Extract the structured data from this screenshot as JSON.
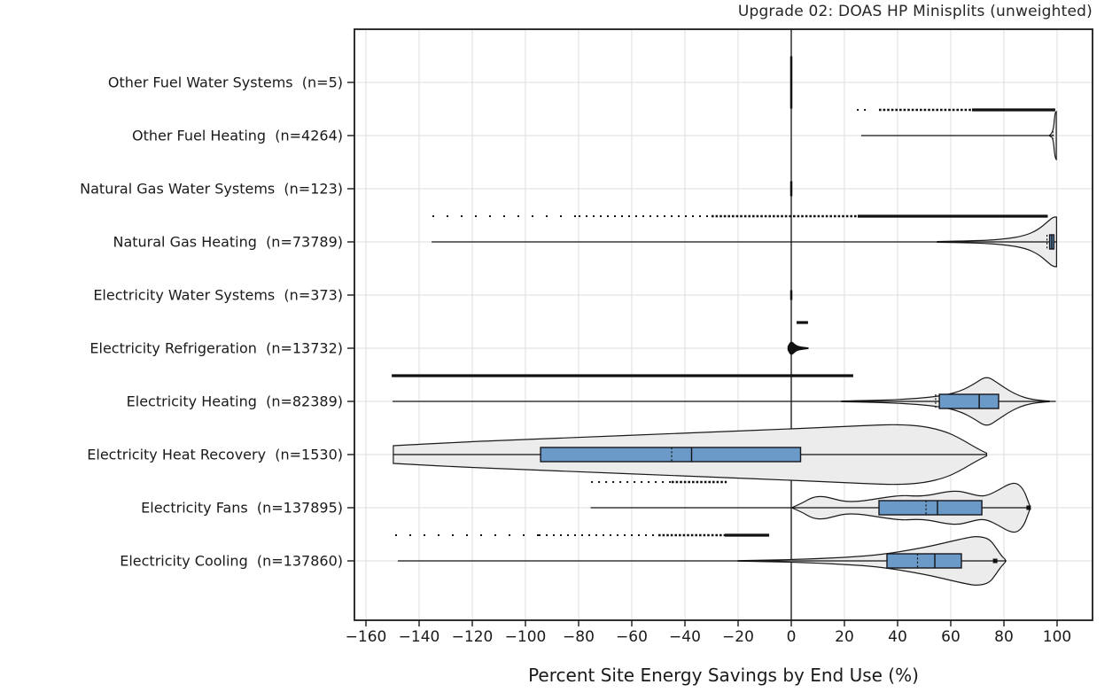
{
  "colors": {
    "box_fill": "#6C9AC8",
    "box_edge": "#16161d",
    "violin_fill": "#ececec",
    "violin_edge": "#1a1a1a",
    "grid": "#dcdcdc",
    "zero_line": "#3c3c3c",
    "axis": "#1a1a1a",
    "ink": "#111111"
  },
  "chart_data": {
    "type": "violin+box (horizontal, with outlier strips)",
    "title": "Upgrade 02: DOAS HP Minisplits (unweighted)",
    "xlabel": "Percent Site Energy Savings by End Use (%)",
    "x_axis": {
      "min": -176,
      "max": 113,
      "ticks": [
        -160,
        -140,
        -120,
        -100,
        -80,
        -60,
        -40,
        -20,
        0,
        20,
        40,
        60,
        80,
        100
      ],
      "zero_reference_line": 0,
      "grid": true
    },
    "legend": "none",
    "categories": [
      "Other Fuel Water Systems  (n=5)",
      "Other Fuel Heating  (n=4264)",
      "Natural Gas Water Systems  (n=123)",
      "Natural Gas Heating  (n=73789)",
      "Electricity Water Systems  (n=373)",
      "Electricity Refrigeration  (n=13732)",
      "Electricity Heating  (n=82389)",
      "Electricity Heat Recovery  (n=1530)",
      "Electricity Fans  (n=137895)",
      "Electricity Cooling  (n=137860)"
    ],
    "rows": [
      {
        "label": "Other Fuel Water Systems  (n=5)",
        "n": 5,
        "zero_bar": 29.5
      },
      {
        "label": "Other Fuel Heating  (n=4264)",
        "n": 4264,
        "rug": [
          [
            24.7,
            28.5,
            "dots"
          ],
          [
            33,
            68,
            "dense"
          ],
          [
            68,
            99.3,
            "solid"
          ]
        ],
        "whisker": [
          26.3,
          98.8
        ],
        "violin": [
          [
            97.2,
            0.5
          ],
          [
            98.5,
            2.5
          ],
          [
            99.2,
            26
          ],
          [
            99.7,
            27
          ]
        ],
        "qdash": 98.4
      },
      {
        "label": "Natural Gas Water Systems  (n=123)",
        "n": 123,
        "zero_bar": 8.5
      },
      {
        "label": "Natural Gas Heating  (n=73789)",
        "n": 73789,
        "rug": [
          [
            -135,
            -80,
            "sparse"
          ],
          [
            -80,
            -30,
            "dots"
          ],
          [
            -30,
            25,
            "dense"
          ],
          [
            25,
            96.5,
            "solid"
          ]
        ],
        "whisker": [
          -135.3,
          99.7
        ],
        "violin": [
          [
            55,
            0.4
          ],
          [
            70,
            1.2
          ],
          [
            80,
            3
          ],
          [
            88,
            7
          ],
          [
            93,
            14
          ],
          [
            96.5,
            23
          ],
          [
            98.5,
            28
          ],
          [
            99.8,
            28
          ]
        ],
        "box": {
          "q1": 97.2,
          "q3": 98.8,
          "median": 98.0,
          "dashed": 96.2
        }
      },
      {
        "label": "Electricity Water Systems  (n=373)",
        "n": 373,
        "zero_bar": 5.5
      },
      {
        "label": "Electricity Refrigeration  (n=13732)",
        "n": 13732,
        "rug": [
          [
            2,
            6.3,
            "solid"
          ]
        ],
        "whisker": [
          -0.8,
          6.5
        ],
        "violin": [
          [
            -1.2,
            2
          ],
          [
            -0.4,
            6.5
          ],
          [
            0.3,
            7
          ],
          [
            1,
            5
          ],
          [
            2,
            2.5
          ],
          [
            4,
            1.2
          ],
          [
            6.3,
            0.4
          ]
        ],
        "violin_dark": true
      },
      {
        "label": "Electricity Heating  (n=82389)",
        "n": 82389,
        "rug": [
          [
            -150.3,
            23.3,
            "solid"
          ]
        ],
        "whisker": [
          -150,
          99.5
        ],
        "violin": [
          [
            19,
            0.4
          ],
          [
            30,
            1
          ],
          [
            40,
            2
          ],
          [
            50,
            4
          ],
          [
            58,
            7
          ],
          [
            64,
            12
          ],
          [
            69,
            20
          ],
          [
            73.5,
            29
          ],
          [
            78,
            20
          ],
          [
            82,
            12
          ],
          [
            86,
            6
          ],
          [
            90,
            2.5
          ],
          [
            94,
            1
          ],
          [
            97,
            0.4
          ]
        ],
        "box": {
          "q1": 55.7,
          "q3": 78.0,
          "median": 70.7,
          "dashed": 54.3
        }
      },
      {
        "label": "Electricity Heat Recovery  (n=1530)",
        "n": 1530,
        "whisker": [
          -149.7,
          73.5
        ],
        "violin": [
          [
            -149.7,
            10
          ],
          [
            -125,
            14
          ],
          [
            -100,
            17
          ],
          [
            -75,
            20
          ],
          [
            -50,
            23
          ],
          [
            -25,
            26
          ],
          [
            0,
            29
          ],
          [
            15,
            31
          ],
          [
            30,
            33
          ],
          [
            40,
            34
          ],
          [
            50,
            32
          ],
          [
            58,
            26
          ],
          [
            63,
            19
          ],
          [
            67,
            12
          ],
          [
            70.5,
            6
          ],
          [
            73.5,
            1.5
          ]
        ],
        "box": {
          "q1": -94.3,
          "q3": 3.5,
          "median": -37.5,
          "dashed": -45.0
        }
      },
      {
        "label": "Electricity Fans  (n=137895)",
        "n": 137895,
        "rug": [
          [
            -75.3,
            -45,
            "dots"
          ],
          [
            -45,
            -24.3,
            "dense"
          ]
        ],
        "whisker": [
          -75.5,
          89.5
        ],
        "violin": [
          [
            0.5,
            0.5
          ],
          [
            4,
            5
          ],
          [
            8,
            12
          ],
          [
            12,
            13
          ],
          [
            16,
            10
          ],
          [
            20,
            7
          ],
          [
            25,
            7
          ],
          [
            30,
            9
          ],
          [
            36,
            12
          ],
          [
            42,
            14
          ],
          [
            47,
            13
          ],
          [
            52,
            14
          ],
          [
            58,
            18
          ],
          [
            63,
            19
          ],
          [
            67,
            16
          ],
          [
            71,
            13
          ],
          [
            74,
            14
          ],
          [
            78,
            20
          ],
          [
            82,
            27
          ],
          [
            85,
            28
          ],
          [
            87.5,
            20
          ],
          [
            89,
            8
          ],
          [
            89.8,
            1.5
          ]
        ],
        "box": {
          "q1": 33.0,
          "q3": 71.7,
          "median": 55.0,
          "dashed": 50.7
        },
        "end_cap": 89.3
      },
      {
        "label": "Electricity Cooling  (n=137860)",
        "n": 137860,
        "rug": [
          [
            -149,
            -95,
            "sparse"
          ],
          [
            -95,
            -50,
            "dots"
          ],
          [
            -50,
            -25,
            "dense"
          ],
          [
            -25,
            -8.3,
            "solid"
          ]
        ],
        "whisker": [
          -148,
          81
        ],
        "violin": [
          [
            -20,
            0.3
          ],
          [
            -10,
            0.8
          ],
          [
            0,
            1.5
          ],
          [
            10,
            2.5
          ],
          [
            20,
            4
          ],
          [
            30,
            6
          ],
          [
            38,
            9
          ],
          [
            46,
            13
          ],
          [
            53,
            17
          ],
          [
            60,
            22
          ],
          [
            66,
            26
          ],
          [
            70,
            28
          ],
          [
            74.5,
            25
          ],
          [
            77,
            15
          ],
          [
            79,
            6
          ],
          [
            80.5,
            1.5
          ]
        ],
        "box": {
          "q1": 36.0,
          "q3": 64.0,
          "median": 54.0,
          "dashed": 47.5
        },
        "end_cap": 76.7
      }
    ]
  }
}
